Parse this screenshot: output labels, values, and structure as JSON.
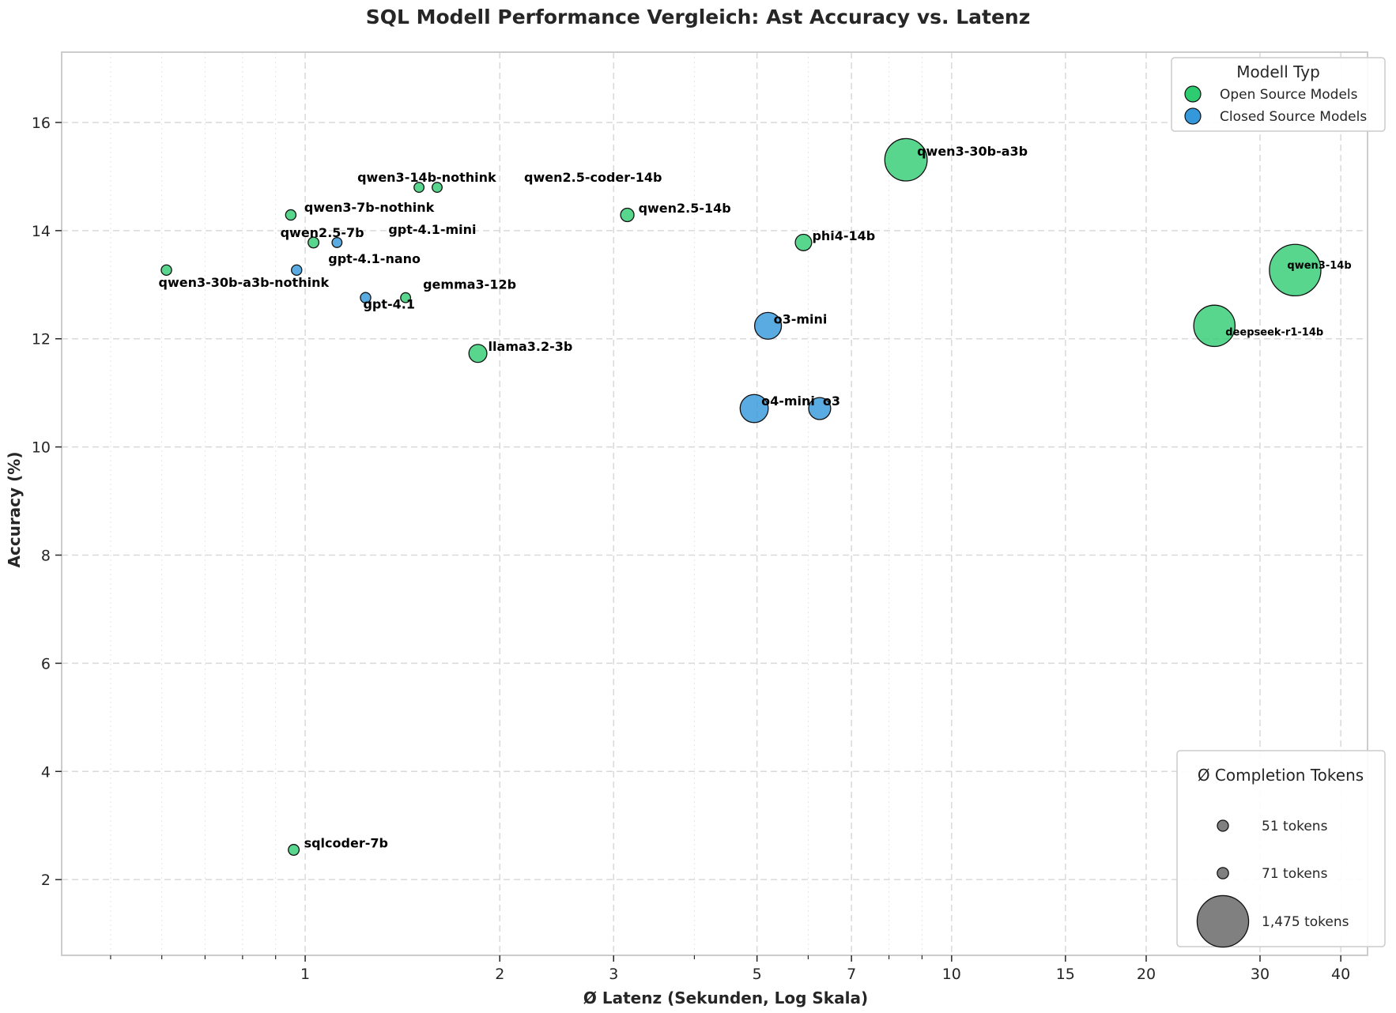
{
  "chart_data": {
    "type": "scatter",
    "title": "SQL Modell Performance Vergleich: Ast Accuracy vs. Latenz",
    "xlabel": "Ø Latenz (Sekunden, Log Skala)",
    "ylabel": "Accuracy (%)",
    "x_scale": "log",
    "xlim": [
      0.42,
      44
    ],
    "ylim": [
      0.6,
      17.3
    ],
    "x_ticks": [
      1,
      2,
      3,
      5,
      7,
      10,
      15,
      20,
      30,
      40
    ],
    "x_minor_ticks": [
      0.6,
      0.7,
      0.8,
      0.9,
      4,
      6,
      8,
      9
    ],
    "y_ticks": [
      2,
      4,
      6,
      8,
      10,
      12,
      14,
      16
    ],
    "grid": true,
    "colors": {
      "open": "#2ecc71",
      "closed": "#3498db"
    },
    "legend_type": {
      "title": "Modell Typ",
      "placement": "top-right",
      "entries": [
        {
          "label": "Open Source Models",
          "color": "#2ecc71"
        },
        {
          "label": "Closed Source Models",
          "color": "#3498db"
        }
      ]
    },
    "legend_size": {
      "title": "Ø Completion Tokens",
      "placement": "lower-right",
      "entries": [
        {
          "label": "51 tokens",
          "tokens": 51
        },
        {
          "label": "71 tokens",
          "tokens": 71
        },
        {
          "label": "1,475 tokens",
          "tokens": 1475
        }
      ]
    },
    "points": [
      {
        "label": "qwen3-30b-a3b-nothink",
        "x": 0.61,
        "y": 13.27,
        "tokens": 60,
        "group": "open"
      },
      {
        "label": "qwen3-7b-nothink",
        "x": 0.95,
        "y": 14.29,
        "tokens": 60,
        "group": "open"
      },
      {
        "label": "qwen2.5-7b",
        "x": 1.03,
        "y": 13.78,
        "tokens": 65,
        "group": "open"
      },
      {
        "label": "gpt-4.1-nano",
        "x": 0.97,
        "y": 13.27,
        "tokens": 60,
        "group": "closed"
      },
      {
        "label": "gpt-4.1-mini",
        "x": 1.12,
        "y": 13.78,
        "tokens": 55,
        "group": "closed"
      },
      {
        "label": "qwen3-14b-nothink",
        "x": 1.5,
        "y": 14.8,
        "tokens": 55,
        "group": "open"
      },
      {
        "label": "qwen2.5-coder-14b",
        "x": 1.6,
        "y": 14.8,
        "tokens": 55,
        "group": "open"
      },
      {
        "label": "gpt-4.1",
        "x": 1.24,
        "y": 12.76,
        "tokens": 60,
        "group": "closed"
      },
      {
        "label": "gemma3-12b",
        "x": 1.43,
        "y": 12.76,
        "tokens": 55,
        "group": "open"
      },
      {
        "label": "sqlcoder-7b",
        "x": 0.96,
        "y": 2.55,
        "tokens": 65,
        "group": "open"
      },
      {
        "label": "llama3.2-3b",
        "x": 1.85,
        "y": 11.73,
        "tokens": 180,
        "group": "open"
      },
      {
        "label": "qwen2.5-14b",
        "x": 3.15,
        "y": 14.29,
        "tokens": 100,
        "group": "open"
      },
      {
        "label": "phi4-14b",
        "x": 5.9,
        "y": 13.78,
        "tokens": 150,
        "group": "open"
      },
      {
        "label": "o3-mini",
        "x": 5.2,
        "y": 12.24,
        "tokens": 400,
        "group": "closed"
      },
      {
        "label": "o4-mini",
        "x": 4.95,
        "y": 10.71,
        "tokens": 440,
        "group": "closed"
      },
      {
        "label": "o3",
        "x": 6.25,
        "y": 10.71,
        "tokens": 270,
        "group": "closed"
      },
      {
        "label": "qwen3-30b-a3b",
        "x": 8.5,
        "y": 15.31,
        "tokens": 1000,
        "group": "open"
      },
      {
        "label": "qwen3-14b",
        "x": 34,
        "y": 13.27,
        "tokens": 1475,
        "group": "open"
      },
      {
        "label": "deepseek-r1-14b",
        "x": 25.5,
        "y": 12.24,
        "tokens": 950,
        "group": "open"
      }
    ]
  }
}
